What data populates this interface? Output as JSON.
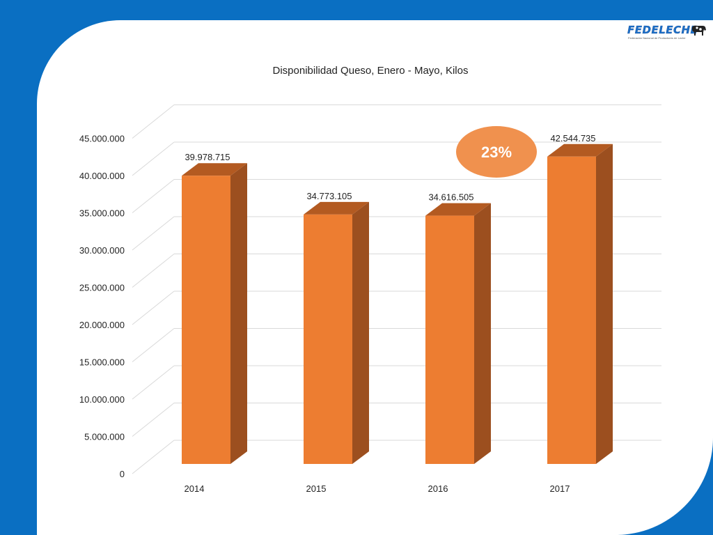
{
  "logo": {
    "name": "FEDELECHE",
    "subtitle": "Federación Nacional de Productores de Leche"
  },
  "badge": {
    "text": "23%",
    "color": "#f0914e"
  },
  "colors": {
    "frame": "#0a6fc2",
    "bar_front": "#ed7d31",
    "bar_side": "#9c4f1f",
    "bar_top": "#b35a21",
    "grid": "#d9d9d9"
  },
  "chart_data": {
    "type": "bar",
    "title": "Disponibilidad Queso, Enero - Mayo, Kilos",
    "categories": [
      "2014",
      "2015",
      "2016",
      "2017"
    ],
    "values": [
      39978715,
      34773105,
      34616505,
      42544735
    ],
    "value_labels": [
      "39.978.715",
      "34.773.105",
      "34.616.505",
      "42.544.735"
    ],
    "y_ticks": [
      "0",
      "5.000.000",
      "10.000.000",
      "15.000.000",
      "20.000.000",
      "25.000.000",
      "30.000.000",
      "35.000.000",
      "40.000.000",
      "45.000.000"
    ],
    "ylim": [
      0,
      45000000
    ],
    "xlabel": "",
    "ylabel": "",
    "grid": true,
    "legend": "none",
    "style": "3d"
  }
}
